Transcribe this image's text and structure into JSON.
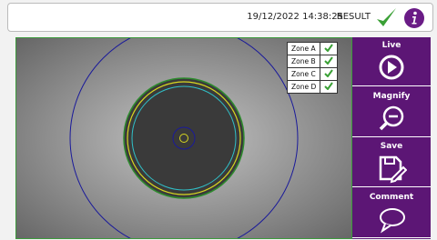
{
  "header": {
    "datetime": "19/12/2022 14:38:25",
    "status": "RESULT"
  },
  "zones": [
    "Zone A",
    "Zone B",
    "Zone C",
    "Zone D"
  ],
  "buttons": [
    "Live",
    "Magnify",
    "Save",
    "Comment"
  ]
}
